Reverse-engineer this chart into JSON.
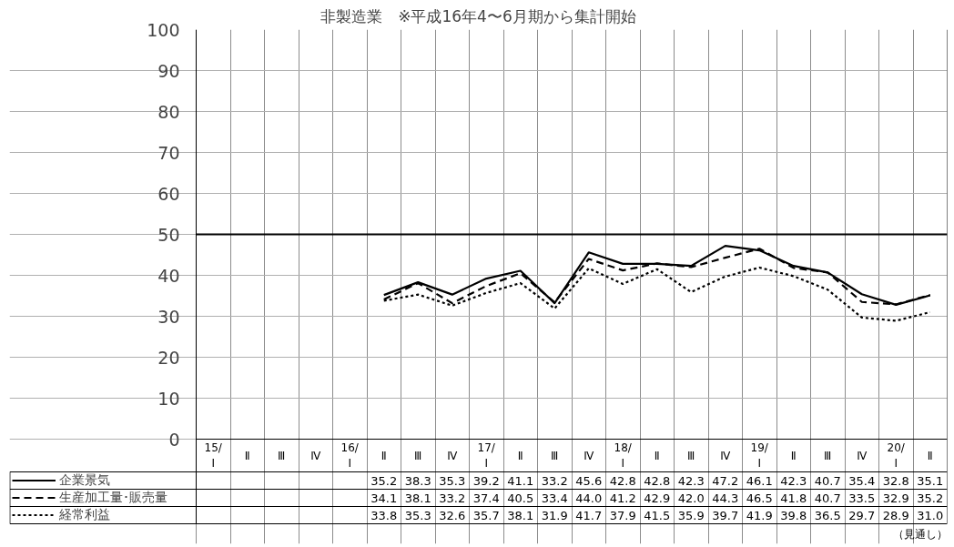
{
  "chart_data": {
    "type": "line",
    "title": "非製造業　※平成16年4〜6月期から集計開始",
    "categories": [
      "15/\nⅠ",
      "Ⅱ",
      "Ⅲ",
      "Ⅳ",
      "16/\nⅠ",
      "Ⅱ",
      "Ⅲ",
      "Ⅳ",
      "17/\nⅠ",
      "Ⅱ",
      "Ⅲ",
      "Ⅳ",
      "18/\nⅠ",
      "Ⅱ",
      "Ⅲ",
      "Ⅳ",
      "19/\nⅠ",
      "Ⅱ",
      "Ⅲ",
      "Ⅳ",
      "20/\nⅠ",
      "Ⅱ"
    ],
    "series": [
      {
        "name": "企業景気",
        "color": "#000000",
        "line_style": "solid",
        "values": [
          null,
          null,
          null,
          null,
          null,
          35.2,
          38.3,
          35.3,
          39.2,
          41.1,
          33.2,
          45.6,
          42.8,
          42.8,
          42.3,
          47.2,
          46.1,
          42.3,
          40.7,
          35.4,
          32.8,
          35.1
        ],
        "value_labels": [
          null,
          null,
          null,
          null,
          null,
          "35.2",
          "38.3",
          "35.3",
          "39.2",
          "41.1",
          "33.2",
          "45.6",
          "42.8",
          "42.8",
          "42.3",
          "47.2",
          "46.1",
          "42.3",
          "40.7",
          "35.4",
          "32.8",
          "35.1"
        ]
      },
      {
        "name": "生産加工量･販売量",
        "color": "#000000",
        "line_style": "dashed",
        "values": [
          null,
          null,
          null,
          null,
          null,
          34.1,
          38.1,
          33.2,
          37.4,
          40.5,
          33.4,
          44.0,
          41.2,
          42.9,
          42.0,
          44.3,
          46.5,
          41.8,
          40.7,
          33.5,
          32.9,
          35.2
        ],
        "value_labels": [
          null,
          null,
          null,
          null,
          null,
          "34.1",
          "38.1",
          "33.2",
          "37.4",
          "40.5",
          "33.4",
          "44.0",
          "41.2",
          "42.9",
          "42.0",
          "44.3",
          "46.5",
          "41.8",
          "40.7",
          "33.5",
          "32.9",
          "35.2"
        ]
      },
      {
        "name": "経常利益",
        "color": "#000000",
        "line_style": "dotted",
        "values": [
          null,
          null,
          null,
          null,
          null,
          33.8,
          35.3,
          32.6,
          35.7,
          38.1,
          31.9,
          41.7,
          37.9,
          41.5,
          35.9,
          39.7,
          41.9,
          39.8,
          36.5,
          29.7,
          28.9,
          31.0
        ],
        "value_labels": [
          null,
          null,
          null,
          null,
          null,
          "33.8",
          "35.3",
          "32.6",
          "35.7",
          "38.1",
          "31.9",
          "41.7",
          "37.9",
          "41.5",
          "35.9",
          "39.7",
          "41.9",
          "39.8",
          "36.5",
          "29.7",
          "28.9",
          "31.0"
        ]
      }
    ],
    "ylim": [
      0,
      100
    ],
    "yticks": [
      0,
      10,
      20,
      30,
      40,
      50,
      60,
      70,
      80,
      90,
      100
    ],
    "ref_lines": [
      {
        "axis": "y",
        "value": 50,
        "color": "#000000"
      }
    ],
    "grid": true,
    "legend": "bottom left",
    "marker": "none",
    "annotations": [
      "（見通し）"
    ]
  }
}
